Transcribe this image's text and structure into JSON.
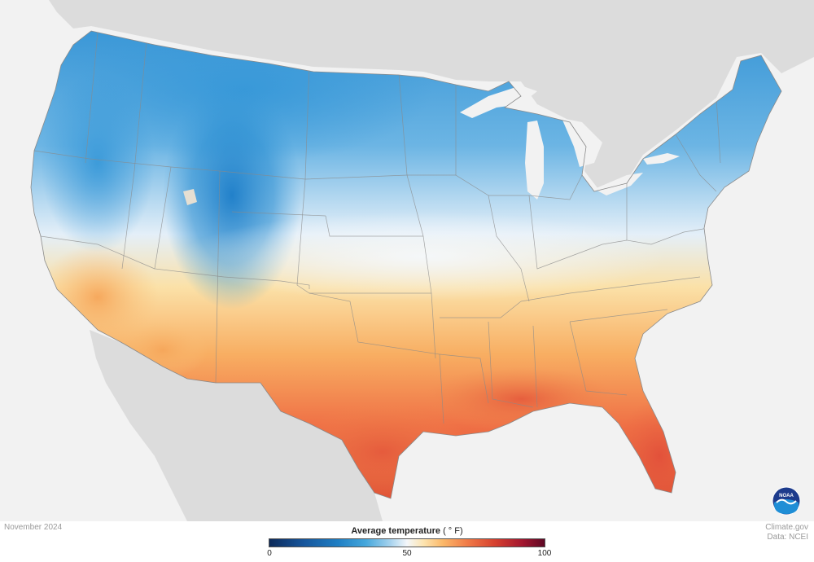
{
  "map": {
    "date": "November 2024",
    "legend": {
      "title": "Average temperature",
      "unit": "( ° F)",
      "ticks": [
        "0",
        "50",
        "100"
      ]
    },
    "credits": {
      "site": "Climate.gov",
      "source": "Data: NCEI"
    },
    "logo": {
      "text": "NOAA"
    },
    "colors": {
      "cold": "#1f7fc4",
      "neutral": "#f4f7fa",
      "warm": "#fbb869",
      "hot": "#d6402f",
      "land_outside": "#dcdcdc",
      "water": "#f2f2f2"
    }
  }
}
